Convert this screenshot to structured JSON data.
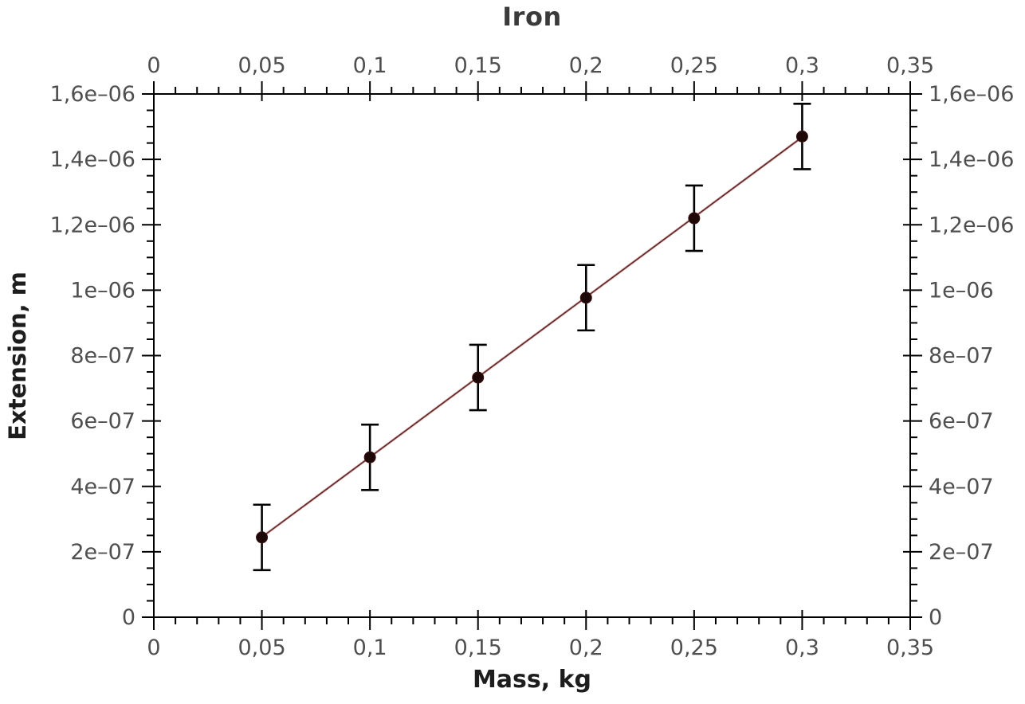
{
  "chart_data": {
    "type": "scatter",
    "title": "Iron",
    "xlabel": "Mass, kg",
    "ylabel": "Extension, m",
    "x": [
      0.05,
      0.1,
      0.15,
      0.2,
      0.25,
      0.3
    ],
    "y": [
      2.44e-07,
      4.89e-07,
      7.33e-07,
      9.77e-07,
      1.22e-06,
      1.47e-06
    ],
    "yerr": 1e-07,
    "fit_line": {
      "x1": 0.05,
      "y1": 2.45e-07,
      "x2": 0.3,
      "y2": 1.468e-06
    },
    "xlim": [
      0,
      0.35
    ],
    "ylim": [
      0,
      1.6e-06
    ],
    "x_major_step": 0.05,
    "x_minor_step": 0.01,
    "y_major_step": 2e-07,
    "y_minor_step": 5e-08,
    "x_tick_labels": [
      "0",
      "0,05",
      "0,1",
      "0,15",
      "0,2",
      "0,25",
      "0,3",
      "0,35"
    ],
    "y_tick_labels": [
      "0",
      "2e–07",
      "4e–07",
      "6e–07",
      "8e–07",
      "1e–06",
      "1,2e–06",
      "1,4e–06",
      "1,6e–06"
    ],
    "mirrored_axes": {
      "top": true,
      "right": true
    },
    "grid": false,
    "legend": "none"
  },
  "colors": {
    "axis": "#000000",
    "tick_label": "#4f4f4f",
    "title": "#3a3a3a",
    "axis_title": "#1d1d1d",
    "point": "#1d0707",
    "error_bar": "#000000",
    "fit_line_core": "#5f2626",
    "fit_line_halo": "#e3bcbc",
    "background": "#ffffff"
  }
}
